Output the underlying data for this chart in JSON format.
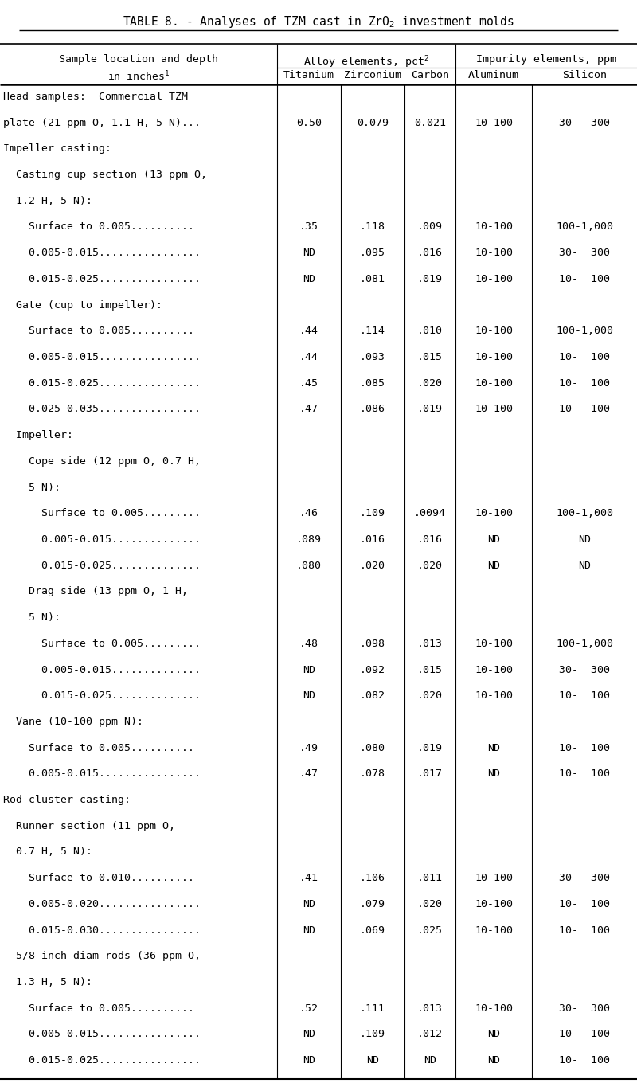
{
  "title": "TABLE 8. - Analyses of TZM cast in ZrO$_2$ investment molds",
  "rows": [
    {
      "label": "Head samples:  Commercial TZM",
      "indent": 0,
      "ti": "",
      "zr": "",
      "c": "",
      "al": "",
      "si": ""
    },
    {
      "label": "plate (21 ppm O, 1.1 H, 5 N)...",
      "indent": 1,
      "ti": "0.50",
      "zr": "0.079",
      "c": "0.021",
      "al": "10-100",
      "si": "30-  300"
    },
    {
      "label": "Impeller casting:",
      "indent": 0,
      "ti": "",
      "zr": "",
      "c": "",
      "al": "",
      "si": ""
    },
    {
      "label": "  Casting cup section (13 ppm O,",
      "indent": 0,
      "ti": "",
      "zr": "",
      "c": "",
      "al": "",
      "si": ""
    },
    {
      "label": "  1.2 H, 5 N):",
      "indent": 0,
      "ti": "",
      "zr": "",
      "c": "",
      "al": "",
      "si": ""
    },
    {
      "label": "    Surface to 0.005..........",
      "indent": 0,
      "ti": ".35",
      "zr": ".118",
      "c": ".009",
      "al": "10-100",
      "si": "100-1,000"
    },
    {
      "label": "    0.005-0.015................",
      "indent": 0,
      "ti": "ND",
      "zr": ".095",
      "c": ".016",
      "al": "10-100",
      "si": "30-  300"
    },
    {
      "label": "    0.015-0.025................",
      "indent": 0,
      "ti": "ND",
      "zr": ".081",
      "c": ".019",
      "al": "10-100",
      "si": "10-  100"
    },
    {
      "label": "  Gate (cup to impeller):",
      "indent": 0,
      "ti": "",
      "zr": "",
      "c": "",
      "al": "",
      "si": ""
    },
    {
      "label": "    Surface to 0.005..........",
      "indent": 0,
      "ti": ".44",
      "zr": ".114",
      "c": ".010",
      "al": "10-100",
      "si": "100-1,000"
    },
    {
      "label": "    0.005-0.015................",
      "indent": 0,
      "ti": ".44",
      "zr": ".093",
      "c": ".015",
      "al": "10-100",
      "si": "10-  100"
    },
    {
      "label": "    0.015-0.025................",
      "indent": 0,
      "ti": ".45",
      "zr": ".085",
      "c": ".020",
      "al": "10-100",
      "si": "10-  100"
    },
    {
      "label": "    0.025-0.035................",
      "indent": 0,
      "ti": ".47",
      "zr": ".086",
      "c": ".019",
      "al": "10-100",
      "si": "10-  100"
    },
    {
      "label": "  Impeller:",
      "indent": 0,
      "ti": "",
      "zr": "",
      "c": "",
      "al": "",
      "si": ""
    },
    {
      "label": "    Cope side (12 ppm O, 0.7 H,",
      "indent": 0,
      "ti": "",
      "zr": "",
      "c": "",
      "al": "",
      "si": ""
    },
    {
      "label": "    5 N):",
      "indent": 0,
      "ti": "",
      "zr": "",
      "c": "",
      "al": "",
      "si": ""
    },
    {
      "label": "      Surface to 0.005.........",
      "indent": 0,
      "ti": ".46",
      "zr": ".109",
      "c": ".0094",
      "al": "10-100",
      "si": "100-1,000"
    },
    {
      "label": "      0.005-0.015..............",
      "indent": 0,
      "ti": ".089",
      "zr": ".016",
      "c": ".016",
      "al": "ND",
      "si": "ND"
    },
    {
      "label": "      0.015-0.025..............",
      "indent": 0,
      "ti": ".080",
      "zr": ".020",
      "c": ".020",
      "al": "ND",
      "si": "ND"
    },
    {
      "label": "    Drag side (13 ppm O, 1 H,",
      "indent": 0,
      "ti": "",
      "zr": "",
      "c": "",
      "al": "",
      "si": ""
    },
    {
      "label": "    5 N):",
      "indent": 0,
      "ti": "",
      "zr": "",
      "c": "",
      "al": "",
      "si": ""
    },
    {
      "label": "      Surface to 0.005.........",
      "indent": 0,
      "ti": ".48",
      "zr": ".098",
      "c": ".013",
      "al": "10-100",
      "si": "100-1,000"
    },
    {
      "label": "      0.005-0.015..............",
      "indent": 0,
      "ti": "ND",
      "zr": ".092",
      "c": ".015",
      "al": "10-100",
      "si": "30-  300"
    },
    {
      "label": "      0.015-0.025..............",
      "indent": 0,
      "ti": "ND",
      "zr": ".082",
      "c": ".020",
      "al": "10-100",
      "si": "10-  100"
    },
    {
      "label": "  Vane (10-100 ppm N):",
      "indent": 0,
      "ti": "",
      "zr": "",
      "c": "",
      "al": "",
      "si": ""
    },
    {
      "label": "    Surface to 0.005..........",
      "indent": 0,
      "ti": ".49",
      "zr": ".080",
      "c": ".019",
      "al": "ND",
      "si": "10-  100"
    },
    {
      "label": "    0.005-0.015................",
      "indent": 0,
      "ti": ".47",
      "zr": ".078",
      "c": ".017",
      "al": "ND",
      "si": "10-  100"
    },
    {
      "label": "Rod cluster casting:",
      "indent": 0,
      "ti": "",
      "zr": "",
      "c": "",
      "al": "",
      "si": ""
    },
    {
      "label": "  Runner section (11 ppm O,",
      "indent": 0,
      "ti": "",
      "zr": "",
      "c": "",
      "al": "",
      "si": ""
    },
    {
      "label": "  0.7 H, 5 N):",
      "indent": 0,
      "ti": "",
      "zr": "",
      "c": "",
      "al": "",
      "si": ""
    },
    {
      "label": "    Surface to 0.010..........",
      "indent": 0,
      "ti": ".41",
      "zr": ".106",
      "c": ".011",
      "al": "10-100",
      "si": "30-  300"
    },
    {
      "label": "    0.005-0.020................",
      "indent": 0,
      "ti": "ND",
      "zr": ".079",
      "c": ".020",
      "al": "10-100",
      "si": "10-  100"
    },
    {
      "label": "    0.015-0.030................",
      "indent": 0,
      "ti": "ND",
      "zr": ".069",
      "c": ".025",
      "al": "10-100",
      "si": "10-  100"
    },
    {
      "label": "  5/8-inch-diam rods (36 ppm O,",
      "indent": 0,
      "ti": "",
      "zr": "",
      "c": "",
      "al": "",
      "si": ""
    },
    {
      "label": "  1.3 H, 5 N):",
      "indent": 0,
      "ti": "",
      "zr": "",
      "c": "",
      "al": "",
      "si": ""
    },
    {
      "label": "    Surface to 0.005..........",
      "indent": 0,
      "ti": ".52",
      "zr": ".111",
      "c": ".013",
      "al": "10-100",
      "si": "30-  300"
    },
    {
      "label": "    0.005-0.015................",
      "indent": 0,
      "ti": "ND",
      "zr": ".109",
      "c": ".012",
      "al": "ND",
      "si": "10-  100"
    },
    {
      "label": "    0.015-0.025................",
      "indent": 0,
      "ti": "ND",
      "zr": "ND",
      "c": "ND",
      "al": "ND",
      "si": "10-  100"
    }
  ],
  "col_bounds": [
    0.0,
    0.435,
    0.535,
    0.635,
    0.715,
    0.835,
    1.0
  ],
  "bg_color": "#ffffff",
  "text_color": "#000000",
  "font_size": 9.5,
  "title_font_size": 10.5
}
